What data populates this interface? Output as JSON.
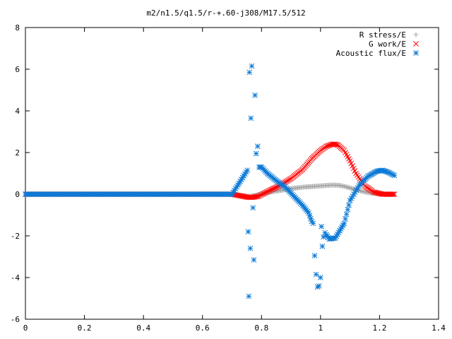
{
  "chart_data": {
    "type": "scatter",
    "title": "m2/n1.5/q1.5/r-+.60-j308/M17.5/512",
    "xlabel": "",
    "ylabel": "",
    "xlim": [
      0,
      1.4
    ],
    "ylim": [
      -6,
      8
    ],
    "x_ticks": [
      "0",
      "0.2",
      "0.4",
      "0.6",
      "0.8",
      "1",
      "1.2",
      "1.4"
    ],
    "y_ticks": [
      "8",
      "6",
      "4",
      "2",
      "0",
      "-2",
      "-4",
      "-6"
    ],
    "grid": false,
    "legend_position": "top-right",
    "series": [
      {
        "name": "R stress/E",
        "marker": "plus",
        "color": "#a0a0a0",
        "x": [
          0.0,
          0.1,
          0.2,
          0.3,
          0.4,
          0.5,
          0.6,
          0.7,
          0.755,
          0.78,
          0.8,
          0.82,
          0.85,
          0.88,
          0.9,
          0.93,
          0.95,
          0.98,
          1.0,
          1.02,
          1.04,
          1.06,
          1.08,
          1.1,
          1.12,
          1.14,
          1.16,
          1.18,
          1.2,
          1.22,
          1.25
        ],
        "y": [
          0,
          0,
          0,
          0,
          0,
          0,
          0,
          0,
          -0.1,
          -0.05,
          0.02,
          0.08,
          0.15,
          0.22,
          0.27,
          0.32,
          0.35,
          0.38,
          0.4,
          0.42,
          0.44,
          0.43,
          0.38,
          0.3,
          0.22,
          0.14,
          0.08,
          0.04,
          0.01,
          0.0,
          -0.02
        ]
      },
      {
        "name": "G work/E",
        "marker": "cross",
        "color": "#ff0000",
        "x": [
          0.0,
          0.1,
          0.2,
          0.3,
          0.4,
          0.5,
          0.6,
          0.7,
          0.755,
          0.77,
          0.79,
          0.81,
          0.83,
          0.86,
          0.9,
          0.94,
          0.97,
          1.0,
          1.02,
          1.04,
          1.05,
          1.06,
          1.08,
          1.1,
          1.12,
          1.15,
          1.18,
          1.21,
          1.25
        ],
        "y": [
          0,
          0,
          0,
          0,
          0,
          0,
          0,
          0,
          -0.15,
          -0.15,
          -0.1,
          0.05,
          0.2,
          0.4,
          0.75,
          1.2,
          1.7,
          2.1,
          2.3,
          2.4,
          2.4,
          2.35,
          2.1,
          1.6,
          1.0,
          0.4,
          0.1,
          0.0,
          0.0
        ]
      },
      {
        "name": "Acoustic flux/E",
        "marker": "star",
        "color": "#0c7ad6",
        "x": [
          0.0,
          0.1,
          0.2,
          0.3,
          0.4,
          0.5,
          0.6,
          0.7,
          0.752,
          0.755,
          0.757,
          0.759,
          0.762,
          0.764,
          0.767,
          0.771,
          0.774,
          0.778,
          0.782,
          0.787,
          0.792,
          0.8,
          0.82,
          0.85,
          0.88,
          0.9,
          0.92,
          0.94,
          0.96,
          0.97,
          0.975,
          0.98,
          0.985,
          0.99,
          0.995,
          1.0,
          1.003,
          1.006,
          1.01,
          1.015,
          1.02,
          1.03,
          1.05,
          1.08,
          1.1,
          1.13,
          1.16,
          1.19,
          1.21,
          1.23,
          1.25
        ],
        "y": [
          0,
          0,
          0,
          0,
          0,
          0,
          0,
          0,
          1.15,
          -1.8,
          -4.9,
          5.85,
          -2.6,
          3.65,
          6.15,
          -0.65,
          -3.15,
          4.75,
          1.95,
          2.3,
          1.3,
          1.3,
          1.0,
          0.65,
          0.35,
          0.05,
          -0.25,
          -0.55,
          -0.9,
          -1.3,
          -1.4,
          -2.95,
          -3.85,
          -4.45,
          -4.4,
          -4.0,
          -1.55,
          -2.5,
          -2.05,
          -1.85,
          -1.95,
          -2.15,
          -2.1,
          -1.4,
          -0.3,
          0.4,
          0.85,
          1.1,
          1.15,
          1.05,
          0.9
        ]
      }
    ]
  }
}
